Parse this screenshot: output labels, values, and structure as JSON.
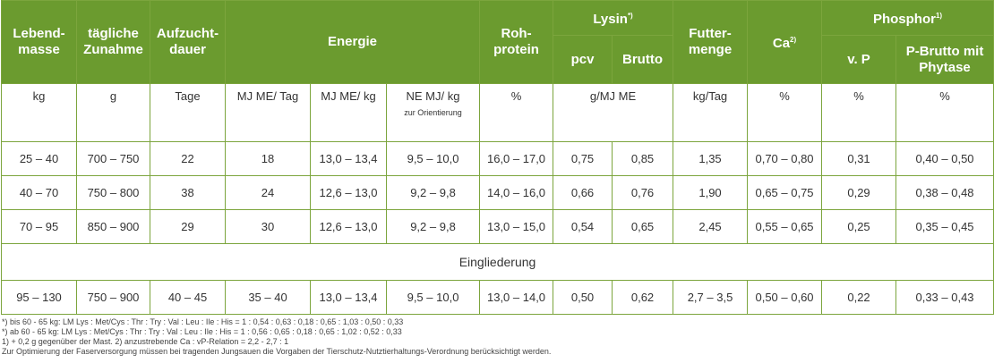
{
  "header": {
    "lebendmasse": "Lebend-masse",
    "zunahme": "tägliche Zunahme",
    "aufzucht": "Aufzucht-dauer",
    "energie": "Energie",
    "rohprotein": "Roh-protein",
    "lysin": "Lysin",
    "lysin_sup": "*)",
    "pcv": "pcv",
    "brutto": "Brutto",
    "futtermenge": "Futter-menge",
    "ca": "Ca",
    "ca_sup": "2)",
    "phosphor": "Phosphor",
    "phosphor_sup": "1)",
    "vp": "v. P",
    "pbrutto": "P-Brutto mit Phytase"
  },
  "units": {
    "kg": "kg",
    "g": "g",
    "tage": "Tage",
    "mjme_tag": "MJ ME/ Tag",
    "mjme_kg": "MJ ME/ kg",
    "ne_mj_kg": "NE MJ/ kg",
    "ne_note": "zur Orientierung",
    "pct1": "%",
    "lys_unit": "g/MJ ME",
    "kg_tag": "kg/Tag",
    "pct2": "%",
    "pct3": "%",
    "pct4": "%"
  },
  "rows": [
    [
      "25 – 40",
      "700 – 750",
      "22",
      "18",
      "13,0 – 13,4",
      "9,5 – 10,0",
      "16,0 – 17,0",
      "0,75",
      "0,85",
      "1,35",
      "0,70 – 0,80",
      "0,31",
      "0,40 – 0,50"
    ],
    [
      "40 – 70",
      "750 – 800",
      "38",
      "24",
      "12,6 – 13,0",
      "9,2 – 9,8",
      "14,0 – 16,0",
      "0,66",
      "0,76",
      "1,90",
      "0,65 – 0,75",
      "0,29",
      "0,38 – 0,48"
    ],
    [
      "70 – 95",
      "850 – 900",
      "29",
      "30",
      "12,6 – 13,0",
      "9,2 – 9,8",
      "13,0 – 15,0",
      "0,54",
      "0,65",
      "2,45",
      "0,55 – 0,65",
      "0,25",
      "0,35 – 0,45"
    ]
  ],
  "band_label": "Eingliederung",
  "last_row": [
    "95 – 130",
    "750 – 900",
    "40 – 45",
    "35 – 40",
    "13,0 – 13,4",
    "9,5 – 10,0",
    "13,0 – 14,0",
    "0,50",
    "0,62",
    "2,7 – 3,5",
    "0,50 – 0,60",
    "0,22",
    "0,33 – 0,43"
  ],
  "notes": [
    "*) bis 60 - 65 kg: LM  Lys : Met/Cys : Thr : Try : Val : Leu : Ile : His = 1 : 0,54 : 0,63 : 0,18 : 0,65 : 1,03 : 0,50 : 0,33",
    "*) ab 60 - 65 kg: LM  Lys : Met/Cys : Thr : Try : Val : Leu : Ile : His = 1 : 0,56 : 0,65 : 0,18 : 0,65 : 1,02 : 0,52 : 0,33",
    "1) + 0,2 g gegenüber der Mast.       2) anzustrebende Ca : vP-Relation = 2,2 - 2,7 : 1",
    "Zur Optimierung der Faserversorgung müssen bei tragenden Jungsauen die Vorgaben der Tierschutz-Nutztierhaltungs-Verordnung berücksichtigt werden."
  ],
  "colors": {
    "header_green": "#6b9b2f",
    "border_green": "#7ca53d"
  }
}
